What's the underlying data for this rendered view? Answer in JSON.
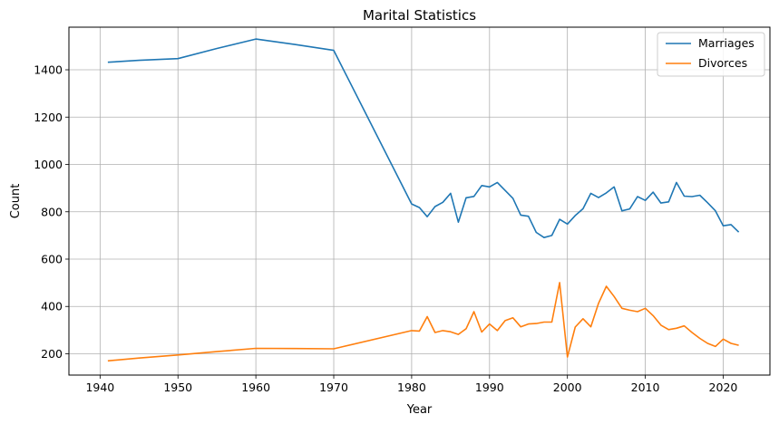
{
  "chart_data": {
    "type": "line",
    "title": "Marital Statistics",
    "xlabel": "Year",
    "ylabel": "Count",
    "xlim": [
      1936,
      2026
    ],
    "ylim": [
      110,
      1580
    ],
    "xticks": [
      1940,
      1950,
      1960,
      1970,
      1980,
      1990,
      2000,
      2010,
      2020
    ],
    "yticks": [
      200,
      400,
      600,
      800,
      1000,
      1200,
      1400
    ],
    "grid": true,
    "legend_position": "top-right",
    "series": [
      {
        "name": "Marriages",
        "color": "#1f77b4",
        "x": [
          1941,
          1945,
          1950,
          1955,
          1960,
          1965,
          1970,
          1980,
          1981,
          1982,
          1983,
          1984,
          1985,
          1986,
          1987,
          1988,
          1989,
          1990,
          1991,
          1992,
          1993,
          1994,
          1995,
          1996,
          1997,
          1998,
          1999,
          2000,
          2001,
          2002,
          2003,
          2004,
          2005,
          2006,
          2007,
          2008,
          2009,
          2010,
          2011,
          2012,
          2013,
          2014,
          2015,
          2016,
          2017,
          2018,
          2019,
          2020,
          2021,
          2022
        ],
        "y": [
          1432,
          1440,
          1447,
          1490,
          1530,
          1507,
          1482,
          833,
          818,
          779,
          822,
          840,
          878,
          756,
          859,
          865,
          911,
          905,
          924,
          890,
          857,
          786,
          781,
          713,
          691,
          700,
          768,
          748,
          784,
          813,
          878,
          860,
          880,
          905,
          804,
          812,
          864,
          848,
          883,
          837,
          842,
          924,
          866,
          864,
          870,
          838,
          804,
          741,
          746,
          714
        ]
      },
      {
        "name": "Divorces",
        "color": "#ff7f0e",
        "x": [
          1941,
          1945,
          1950,
          1955,
          1960,
          1965,
          1970,
          1980,
          1981,
          1982,
          1983,
          1984,
          1985,
          1986,
          1987,
          1988,
          1989,
          1990,
          1991,
          1992,
          1993,
          1994,
          1995,
          1996,
          1997,
          1998,
          1999,
          2000,
          2001,
          2002,
          2003,
          2004,
          2005,
          2006,
          2007,
          2008,
          2009,
          2010,
          2011,
          2012,
          2013,
          2014,
          2015,
          2016,
          2017,
          2018,
          2019,
          2020,
          2021,
          2022
        ],
        "y": [
          170,
          182,
          195,
          209,
          223,
          222,
          221,
          298,
          296,
          357,
          290,
          298,
          293,
          282,
          306,
          378,
          292,
          326,
          298,
          340,
          352,
          314,
          326,
          328,
          334,
          334,
          501,
          186,
          313,
          348,
          314,
          413,
          485,
          442,
          392,
          384,
          378,
          392,
          361,
          321,
          302,
          308,
          318,
          290,
          265,
          244,
          231,
          262,
          244,
          236
        ]
      }
    ]
  }
}
